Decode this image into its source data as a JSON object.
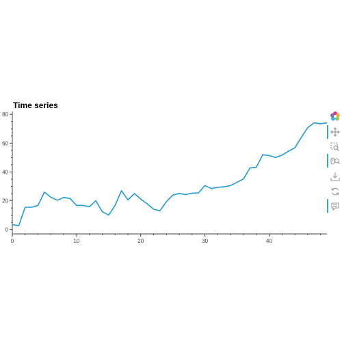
{
  "title": "Time series",
  "chart_data": {
    "type": "line",
    "title": "Time series",
    "xlabel": "",
    "ylabel": "",
    "xlim": [
      0,
      49
    ],
    "ylim": [
      -3,
      82
    ],
    "x_ticks": [
      "0",
      "10",
      "20",
      "30",
      "40"
    ],
    "y_ticks": [
      "0",
      "20",
      "40",
      "60",
      "80"
    ],
    "grid": false,
    "line_color": "#1f9bd1",
    "series": [
      {
        "x": [
          0,
          1,
          2,
          3,
          4,
          5,
          6,
          7,
          8,
          9,
          10,
          11,
          12,
          13,
          14,
          15,
          16,
          17,
          18,
          19,
          20,
          21,
          22,
          23,
          24,
          25,
          26,
          27,
          28,
          29,
          30,
          31,
          32,
          33,
          34,
          35,
          36,
          37,
          38,
          39,
          40,
          41,
          42,
          43,
          44,
          45,
          46,
          47,
          48,
          49
        ],
        "values": [
          3.5,
          2.7,
          15.5,
          15.5,
          16.8,
          26,
          22.5,
          20.4,
          22.3,
          21.6,
          16.8,
          16.8,
          15.9,
          20.1,
          12.5,
          10.1,
          16.8,
          27,
          20.6,
          25,
          21.2,
          17.9,
          14.2,
          13.1,
          19.4,
          24,
          25.1,
          24.3,
          25.3,
          25.5,
          30.6,
          28.5,
          29.4,
          29.7,
          30.6,
          32.9,
          35.2,
          42.8,
          43.2,
          52,
          51.4,
          50,
          51.7,
          54.4,
          56.8,
          64,
          70.7,
          74.1,
          73.5,
          74.1
        ]
      }
    ]
  },
  "toolbar": {
    "tools": [
      "bokeh-logo-icon",
      "pan-icon",
      "box-zoom-icon",
      "wheel-zoom-icon",
      "save-icon",
      "reset-icon",
      "hover-icon"
    ]
  }
}
